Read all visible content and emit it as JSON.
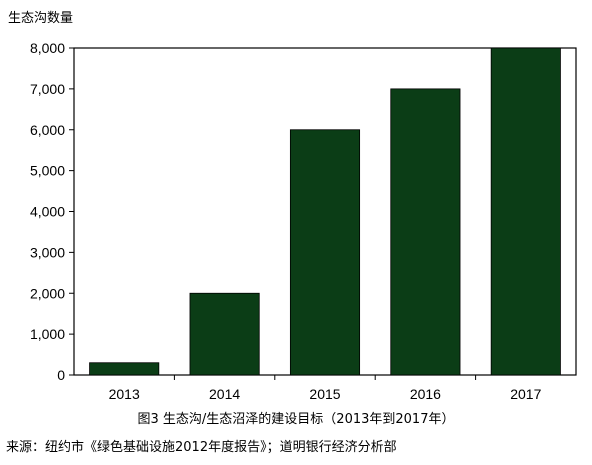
{
  "chart_data": {
    "type": "bar",
    "ylabel": "生态沟数量",
    "categories": [
      "2013",
      "2014",
      "2015",
      "2016",
      "2017"
    ],
    "values": [
      300,
      2000,
      6000,
      7000,
      8000
    ],
    "ylim": [
      0,
      8000
    ],
    "yticks": [
      0,
      1000,
      2000,
      3000,
      4000,
      5000,
      6000,
      7000,
      8000
    ],
    "ytick_labels": [
      "0",
      "1,000",
      "2,000",
      "3,000",
      "4,000",
      "5,000",
      "6,000",
      "7,000",
      "8,000"
    ],
    "grid": false,
    "legend": "none",
    "bar_color": "#0b3d16"
  },
  "caption": "图3 生态沟/生态沼泽的建设目标（2013年到2017年）",
  "source": "来源：纽约市《绿色基础设施2012年度报告》；道明银行经济分析部"
}
